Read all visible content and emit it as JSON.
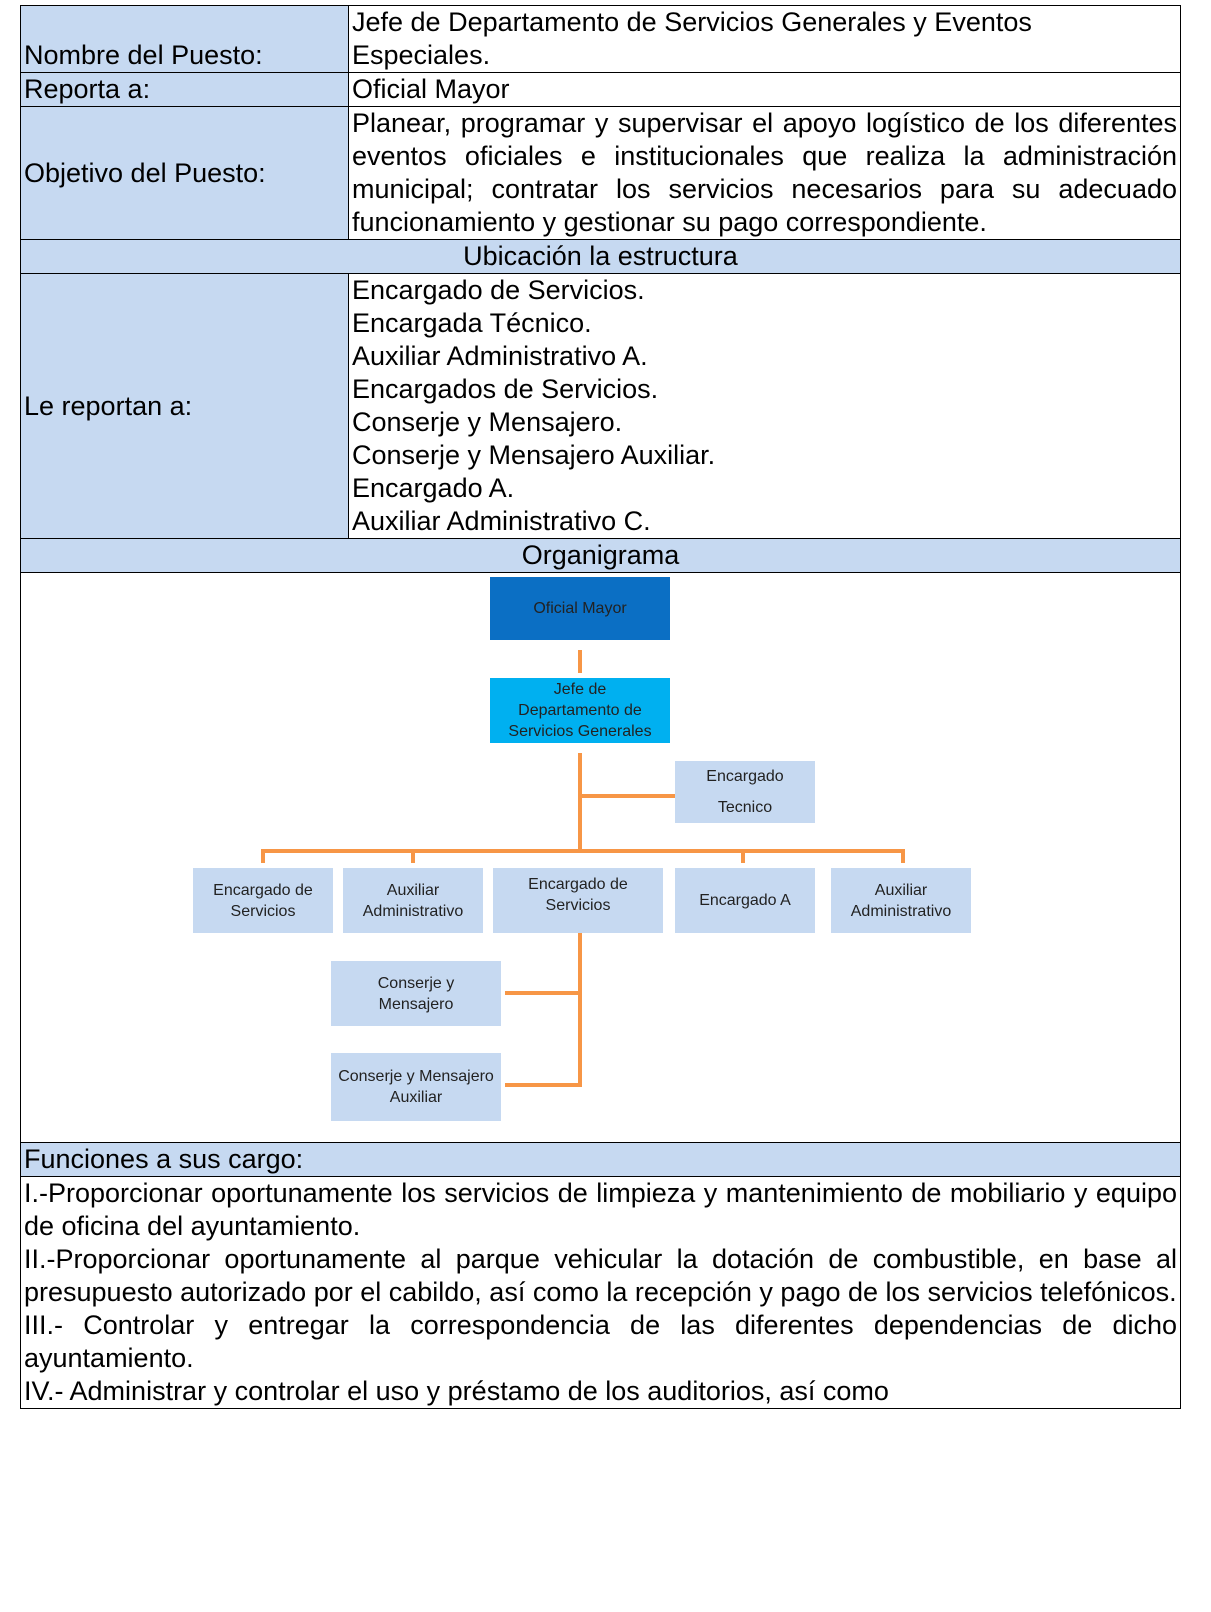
{
  "table": {
    "rows": [
      {
        "label": "Nombre del Puesto:",
        "value": "Jefe de Departamento de Servicios Generales y Eventos Especiales."
      },
      {
        "label": "Reporta a:",
        "value": "Oficial Mayor"
      },
      {
        "label": "Objetivo del Puesto:",
        "value": "Planear, programar y supervisar el apoyo logístico de los diferentes eventos oficiales e institucionales que realiza la administración municipal; contratar los servicios necesarios para su adecuado funcionamiento y gestionar su pago correspondiente."
      }
    ],
    "structure_heading": "Ubicación la estructura",
    "reports": {
      "label": "Le reportan a:",
      "items": [
        "Encargado de Servicios.",
        "Encargada Técnico.",
        "Auxiliar Administrativo A.",
        "Encargados de Servicios.",
        "Conserje y Mensajero.",
        "Conserje y Mensajero Auxiliar.",
        "Encargado A.",
        "Auxiliar Administrativo C."
      ]
    },
    "org_heading": "Organigrama",
    "org_chart": {
      "nodes": [
        {
          "label": "Oficial Mayor"
        },
        {
          "label": "Jefe de Departamento de Servicios Generales"
        },
        {
          "label": "Encargado Tecnico"
        },
        {
          "label": "Encargado de Servicios"
        },
        {
          "label": "Auxiliar Administrativo"
        },
        {
          "label": "Encargado de Servicios"
        },
        {
          "label": "Encargado A"
        },
        {
          "label": "Auxiliar Administrativo"
        },
        {
          "label": "Conserje y Mensajero"
        },
        {
          "label": "Conserje y Mensajero  Auxiliar"
        }
      ]
    },
    "functions_heading": "Funciones a sus cargo:",
    "functions": [
      "I.-Proporcionar oportunamente los servicios de limpieza y mantenimiento de mobiliario y equipo de oficina del ayuntamiento.",
      "II.-Proporcionar oportunamente al parque vehicular la dotación de combustible, en base al  presupuesto autorizado por el cabildo, así como la recepción y pago de los servicios telefónicos.",
      "III.- Controlar y entregar la correspondencia de las diferentes dependencias de dicho ayuntamiento.",
      "IV.- Administrar y controlar el uso y préstamo de los auditorios, así como"
    ]
  }
}
